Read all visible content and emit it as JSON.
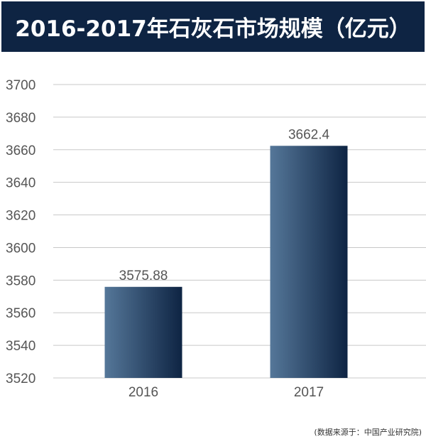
{
  "chart_data": {
    "type": "bar",
    "title": "2016-2017年石灰石市场规模（亿元）",
    "categories": [
      "2016",
      "2017"
    ],
    "values": [
      3575.88,
      3662.4
    ],
    "value_labels": [
      "3575.88",
      "3662.4"
    ],
    "ylim": [
      3520,
      3700
    ],
    "yticks": [
      3520,
      3540,
      3560,
      3580,
      3600,
      3620,
      3640,
      3660,
      3680,
      3700
    ],
    "grid": true,
    "colors": {
      "bar_light": "#557799",
      "bar_dark": "#0e2443",
      "grid": "#c8c8c8",
      "text": "#555555"
    }
  },
  "source": "(数据来源于：中国产业研究院)"
}
